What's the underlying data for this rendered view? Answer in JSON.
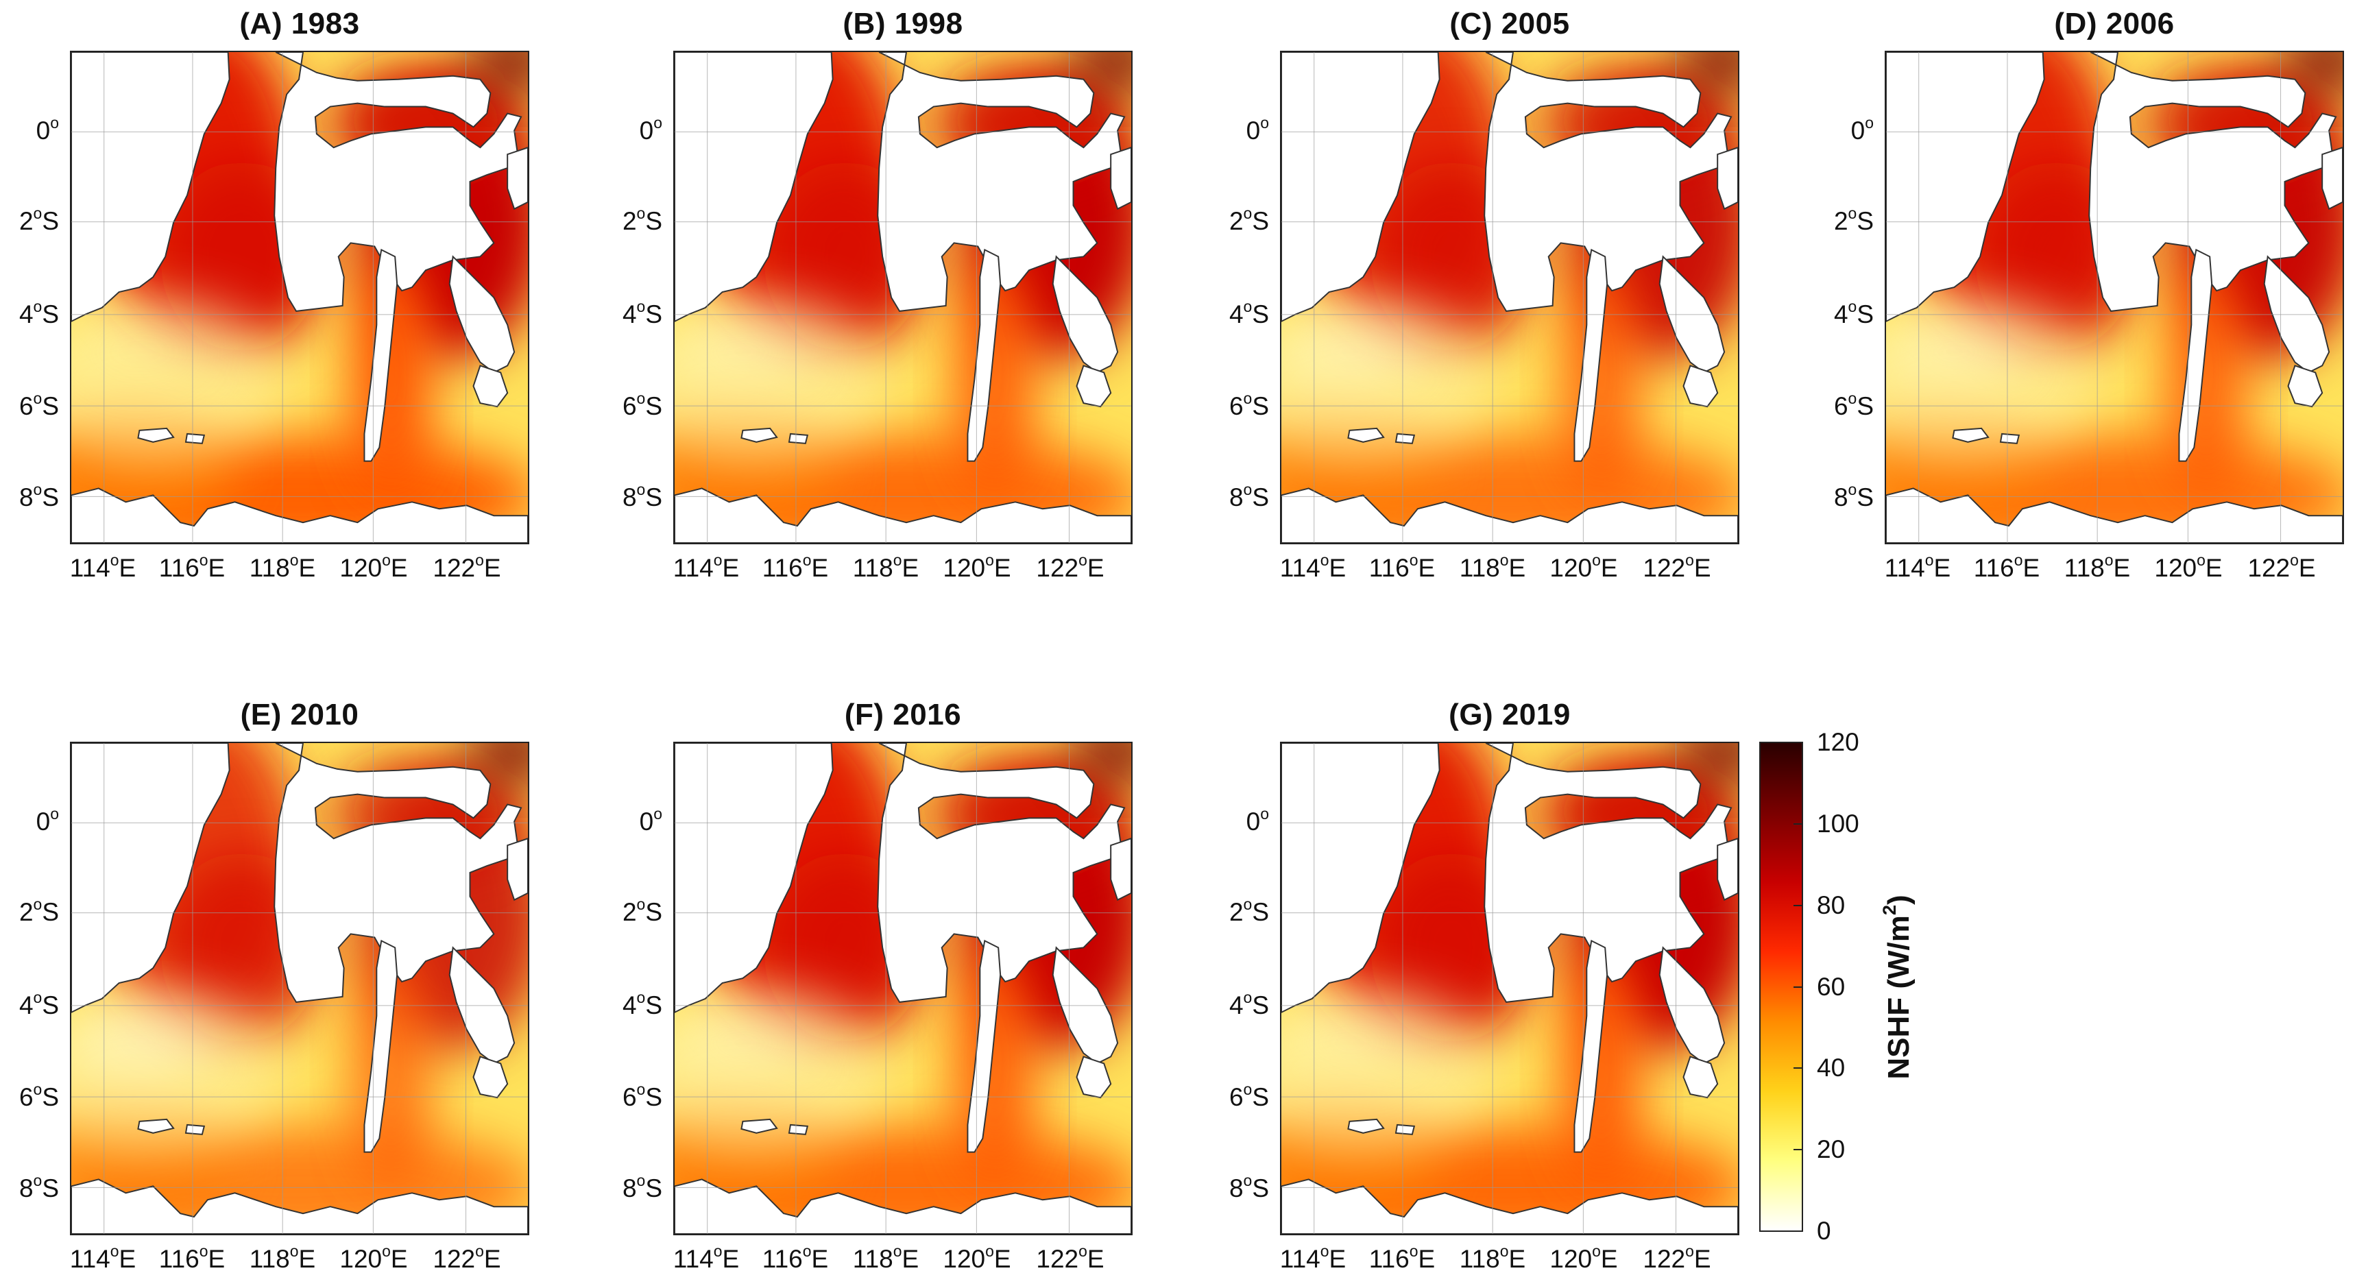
{
  "panels": [
    {
      "title": "(A) 1983",
      "tint": 0.62
    },
    {
      "title": "(B) 1998",
      "tint": 0.5
    },
    {
      "title": "(C) 2005",
      "tint": 0.42
    },
    {
      "title": "(D) 2006",
      "tint": 0.46
    },
    {
      "title": "(E) 2010",
      "tint": 0.32
    },
    {
      "title": "(F) 2016",
      "tint": 0.5
    },
    {
      "title": "(G) 2019",
      "tint": 0.55
    }
  ],
  "lat_ticks": [
    {
      "value": "0",
      "suffix": ""
    },
    {
      "value": "2",
      "suffix": "S"
    },
    {
      "value": "4",
      "suffix": "S"
    },
    {
      "value": "6",
      "suffix": "S"
    },
    {
      "value": "8",
      "suffix": "S"
    }
  ],
  "lon_ticks": [
    {
      "value": "114",
      "suffix": "E"
    },
    {
      "value": "116",
      "suffix": "E"
    },
    {
      "value": "118",
      "suffix": "E"
    },
    {
      "value": "120",
      "suffix": "E"
    },
    {
      "value": "122",
      "suffix": "E"
    }
  ],
  "degree_symbol": "o",
  "colorbar": {
    "label": "NSHF (W/m",
    "label_sup": "2",
    "label_close": ")",
    "min": 0,
    "max": 120,
    "ticks": [
      "120",
      "100",
      "80",
      "60",
      "40",
      "20",
      "0"
    ],
    "colors": [
      "#ffffff",
      "#ffff80",
      "#ffd21a",
      "#ff8c00",
      "#ff2a00",
      "#c80000",
      "#7a0000",
      "#2a0000"
    ]
  }
}
